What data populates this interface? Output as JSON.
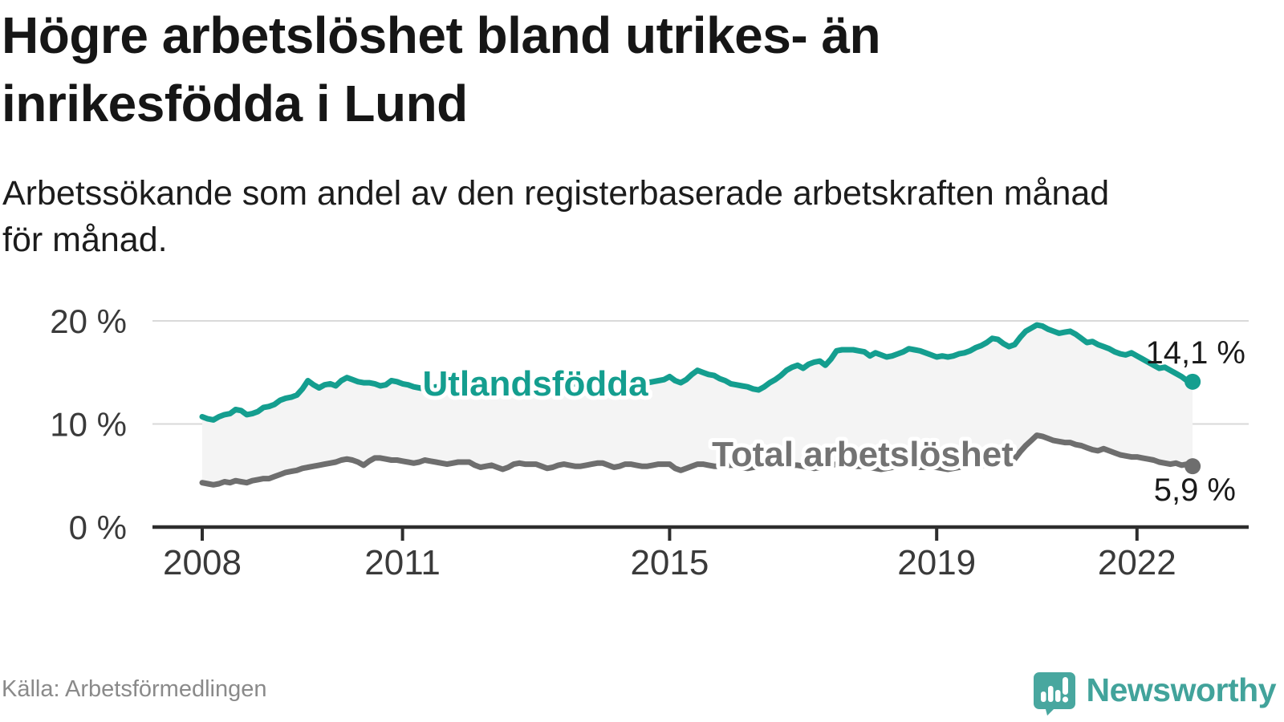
{
  "header": {
    "title_line1": "Högre arbetslöshet bland utrikes- än",
    "title_line2": "inrikesfödda i Lund",
    "subtitle_line1": "Arbetssökande som andel av den registerbaserade arbetskraften månad",
    "subtitle_line2": "för månad."
  },
  "footer": {
    "source": "Källa: Arbetsförmedlingen",
    "brand": "Newsworthy"
  },
  "colors": {
    "teal_line": "#149e8f",
    "gray_line": "#6e6e6e",
    "band_fill": "#f4f4f4",
    "grid": "#d9d9d9",
    "axis": "#2d2d2d",
    "tick_label": "#3a3a3a",
    "value_label": "#1a1a1a",
    "series_label_gray": "#737373",
    "brand_teal": "#48a79f"
  },
  "chart_data": {
    "type": "line",
    "title": "Högre arbetslöshet bland utrikes- än inrikesfödda i Lund",
    "subtitle": "Arbetssökande som andel av den registerbaserade arbetskraften månad för månad.",
    "x_unit": "month",
    "x_start": "2008-01",
    "x_end": "2022-11",
    "x_tick_years": [
      2008,
      2011,
      2015,
      2019,
      2022
    ],
    "x_tick_labels": [
      "2008",
      "2011",
      "2015",
      "2019",
      "2022"
    ],
    "y_ticks": [
      0,
      10,
      20
    ],
    "y_tick_labels": [
      "0 %",
      "10 %",
      "20 %"
    ],
    "ylim": [
      0,
      20.8
    ],
    "grid": "horizontal",
    "band_fill_between_series": true,
    "series": [
      {
        "name": "Utlandsfödda",
        "color": "#149e8f",
        "end_value": 14.1,
        "end_label": "14,1 %",
        "values": [
          10.7,
          10.5,
          10.4,
          10.7,
          10.9,
          11.0,
          11.4,
          11.3,
          10.9,
          11.0,
          11.2,
          11.6,
          11.7,
          11.9,
          12.3,
          12.5,
          12.6,
          12.8,
          13.4,
          14.2,
          13.8,
          13.5,
          13.8,
          13.9,
          13.7,
          14.2,
          14.5,
          14.3,
          14.1,
          14.0,
          14.0,
          13.9,
          13.7,
          13.8,
          14.2,
          14.1,
          13.9,
          13.8,
          13.6,
          13.5,
          13.4,
          13.5,
          13.6,
          13.5,
          13.3,
          13.2,
          13.3,
          13.5,
          13.5,
          13.4,
          13.4,
          13.5,
          13.5,
          13.4,
          13.6,
          13.7,
          13.6,
          13.5,
          13.6,
          13.7,
          13.7,
          13.6,
          13.6,
          13.7,
          13.8,
          13.8,
          14.0,
          13.9,
          13.8,
          13.9,
          14.0,
          14.0,
          14.0,
          13.9,
          13.9,
          14.0,
          14.1,
          14.0,
          14.2,
          14.1,
          14.0,
          14.1,
          14.2,
          14.3,
          14.6,
          14.2,
          14.0,
          14.3,
          14.8,
          15.2,
          15.0,
          14.8,
          14.7,
          14.4,
          14.2,
          13.9,
          13.8,
          13.7,
          13.6,
          13.4,
          13.3,
          13.6,
          14.0,
          14.3,
          14.7,
          15.2,
          15.5,
          15.7,
          15.4,
          15.8,
          16.0,
          16.1,
          15.7,
          16.3,
          17.1,
          17.2,
          17.2,
          17.2,
          17.1,
          17.0,
          16.6,
          16.9,
          16.7,
          16.5,
          16.6,
          16.8,
          17.0,
          17.3,
          17.2,
          17.1,
          16.9,
          16.7,
          16.5,
          16.6,
          16.5,
          16.6,
          16.8,
          16.9,
          17.1,
          17.4,
          17.6,
          17.9,
          18.3,
          18.2,
          17.8,
          17.5,
          17.7,
          18.4,
          19.0,
          19.3,
          19.6,
          19.5,
          19.2,
          19.0,
          18.8,
          18.9,
          19.0,
          18.7,
          18.3,
          17.9,
          18.0,
          17.7,
          17.5,
          17.3,
          17.0,
          16.8,
          16.7,
          16.9,
          16.6,
          16.3,
          16.0,
          15.7,
          15.4,
          15.5,
          15.2,
          14.9,
          14.6,
          14.2,
          14.1
        ]
      },
      {
        "name": "Total arbetslöshet",
        "color": "#6e6e6e",
        "end_value": 5.9,
        "end_label": "5,9 %",
        "values": [
          4.3,
          4.2,
          4.1,
          4.2,
          4.4,
          4.3,
          4.5,
          4.4,
          4.3,
          4.5,
          4.6,
          4.7,
          4.7,
          4.9,
          5.1,
          5.3,
          5.4,
          5.5,
          5.7,
          5.8,
          5.9,
          6.0,
          6.1,
          6.2,
          6.3,
          6.5,
          6.6,
          6.5,
          6.3,
          6.0,
          6.4,
          6.7,
          6.7,
          6.6,
          6.5,
          6.5,
          6.4,
          6.3,
          6.2,
          6.3,
          6.5,
          6.4,
          6.3,
          6.2,
          6.1,
          6.2,
          6.3,
          6.3,
          6.3,
          6.0,
          5.8,
          5.9,
          6.0,
          5.8,
          5.6,
          5.8,
          6.1,
          6.2,
          6.1,
          6.1,
          6.1,
          5.9,
          5.7,
          5.8,
          6.0,
          6.1,
          6.0,
          5.9,
          5.9,
          6.0,
          6.1,
          6.2,
          6.2,
          6.0,
          5.8,
          5.9,
          6.1,
          6.1,
          6.0,
          5.9,
          5.9,
          6.0,
          6.1,
          6.1,
          6.1,
          5.7,
          5.5,
          5.7,
          5.9,
          6.1,
          6.1,
          6.0,
          5.9,
          5.9,
          6.0,
          6.0,
          6.0,
          5.8,
          5.7,
          5.8,
          5.9,
          6.0,
          6.1,
          6.0,
          5.9,
          5.9,
          6.0,
          6.0,
          5.9,
          5.8,
          5.7,
          5.8,
          5.9,
          6.0,
          6.1,
          6.1,
          6.0,
          5.9,
          5.9,
          5.9,
          5.8,
          5.7,
          5.6,
          5.7,
          5.8,
          5.9,
          6.0,
          6.0,
          5.9,
          5.8,
          5.8,
          5.8,
          5.8,
          5.7,
          5.6,
          5.7,
          5.8,
          5.9,
          6.1,
          6.1,
          6.0,
          6.0,
          6.1,
          6.2,
          6.3,
          6.4,
          6.6,
          7.3,
          7.9,
          8.4,
          8.9,
          8.8,
          8.6,
          8.4,
          8.3,
          8.2,
          8.2,
          8.0,
          7.9,
          7.7,
          7.5,
          7.4,
          7.6,
          7.4,
          7.2,
          7.0,
          6.9,
          6.8,
          6.8,
          6.7,
          6.6,
          6.5,
          6.3,
          6.2,
          6.1,
          6.2,
          6.0,
          6.1,
          5.9
        ]
      }
    ]
  }
}
